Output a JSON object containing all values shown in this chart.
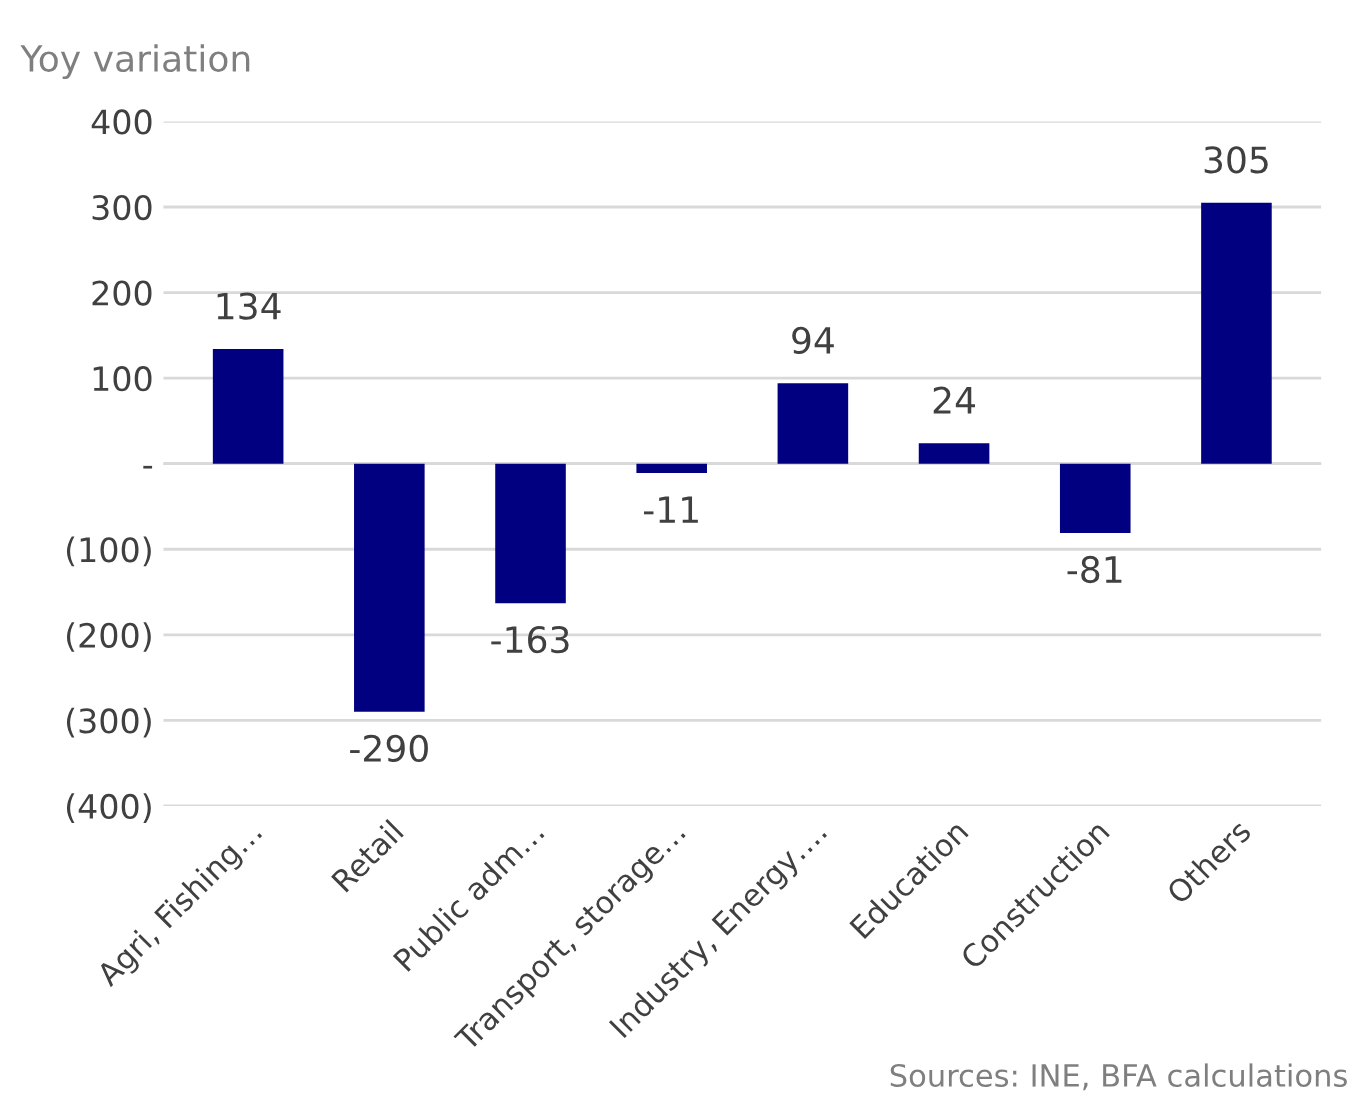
{
  "chart_data": {
    "type": "bar",
    "title": "Yoy variation",
    "categories": [
      "Agri, Fishing…",
      "Retail",
      "Public adm…",
      "Transport, storage…",
      "Industry, Energy….",
      "Education",
      "Construction",
      "Others"
    ],
    "values": [
      134,
      -290,
      -163,
      -11,
      94,
      24,
      -81,
      305
    ],
    "color": "#000080",
    "ylim": [
      -400,
      400
    ],
    "yticks": [
      400,
      300,
      200,
      100,
      {
        "value": 0,
        "label": "-"
      },
      {
        "value": -100,
        "label": "(100)"
      },
      {
        "value": -200,
        "label": "(200)"
      },
      {
        "value": -300,
        "label": "(300)"
      },
      {
        "value": -400,
        "label": "(400)"
      }
    ],
    "grid": "y",
    "data_labels": true,
    "annotations": [
      "Sources: INE, BFA calculations"
    ]
  }
}
